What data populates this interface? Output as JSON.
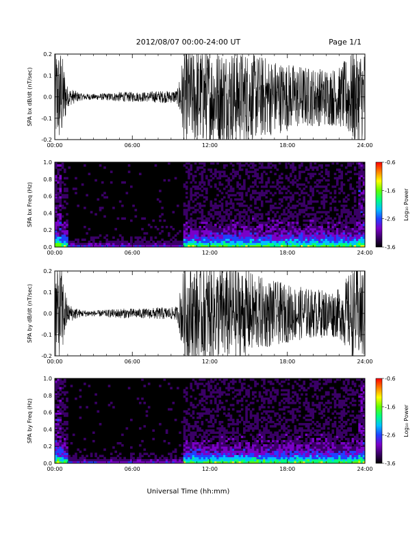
{
  "header": {
    "title": "2012/08/07  00:00-24:00 UT",
    "page": "Page 1/1"
  },
  "xaxis": {
    "label": "Universal Time (hh:mm)",
    "ticks": [
      "00:00",
      "06:00",
      "12:00",
      "18:00",
      "24:00"
    ],
    "range_hours": [
      0,
      24
    ]
  },
  "colors": {
    "background": "#ffffff",
    "trace": "#000000",
    "spectrogram_background": "#000000",
    "colormap": [
      "#000000",
      "#3a0066",
      "#7a00c8",
      "#2040ff",
      "#00c0ff",
      "#00ff80",
      "#60ff00",
      "#ffff00",
      "#ff8000",
      "#ff0000"
    ]
  },
  "chart_data": [
    {
      "type": "line",
      "ylabel": "SPA bx dB/dt (nT/sec)",
      "ylim": [
        -0.2,
        0.2
      ],
      "yticks": [
        "-0.2",
        "-0.1",
        "0.0",
        "0.1",
        "0.2"
      ],
      "series": [
        {
          "x": [
            0,
            0.5,
            1.0,
            2,
            3,
            4,
            5,
            6,
            7,
            8,
            9,
            9.5,
            10.0,
            10.5,
            12,
            14,
            16,
            18,
            20,
            22,
            23.2,
            24
          ],
          "amplitude": [
            0.2,
            0.2,
            0.04,
            0.015,
            0.012,
            0.015,
            0.02,
            0.02,
            0.02,
            0.025,
            0.025,
            0.03,
            0.2,
            0.2,
            0.2,
            0.2,
            0.17,
            0.14,
            0.12,
            0.12,
            0.2,
            0.2
          ]
        }
      ]
    },
    {
      "type": "heatmap",
      "ylabel": "SPA bx Freq (Hz)",
      "ylim": [
        0,
        1.0
      ],
      "yticks": [
        "0.0",
        "0.2",
        "0.4",
        "0.6",
        "0.8",
        "1.0"
      ],
      "colorbar": {
        "label": "Log₁₀ Power",
        "range": [
          -3.6,
          -0.6
        ],
        "ticks": [
          "-0.6",
          "-1.6",
          "-2.6",
          "-3.6"
        ]
      },
      "active_intervals_hours": [
        [
          0,
          1
        ],
        [
          10,
          24
        ]
      ],
      "peak_low_freq_power_log10": -1.6
    },
    {
      "type": "line",
      "ylabel": "SPA by dB/dt (nT/sec)",
      "ylim": [
        -0.2,
        0.2
      ],
      "yticks": [
        "-0.2",
        "-0.1",
        "0.0",
        "0.1",
        "0.2"
      ],
      "series": [
        {
          "x": [
            0,
            0.5,
            1.0,
            2,
            3,
            4,
            5,
            6,
            7,
            8,
            9,
            9.5,
            10.0,
            10.5,
            12,
            14,
            16,
            18,
            20,
            22,
            23.2,
            24
          ],
          "amplitude": [
            0.2,
            0.2,
            0.04,
            0.015,
            0.012,
            0.015,
            0.02,
            0.02,
            0.02,
            0.025,
            0.025,
            0.03,
            0.2,
            0.2,
            0.2,
            0.2,
            0.15,
            0.12,
            0.1,
            0.1,
            0.2,
            0.2
          ]
        }
      ]
    },
    {
      "type": "heatmap",
      "ylabel": "SPA by Freq (Hz)",
      "ylim": [
        0,
        1.0
      ],
      "yticks": [
        "0.0",
        "0.2",
        "0.4",
        "0.6",
        "0.8",
        "1.0"
      ],
      "colorbar": {
        "label": "Log₁₀ Power",
        "range": [
          -3.6,
          -0.6
        ],
        "ticks": [
          "-0.6",
          "-1.6",
          "-2.6",
          "-3.6"
        ]
      },
      "active_intervals_hours": [
        [
          0,
          1
        ],
        [
          10,
          24
        ]
      ],
      "peak_low_freq_power_log10": -1.6
    }
  ]
}
